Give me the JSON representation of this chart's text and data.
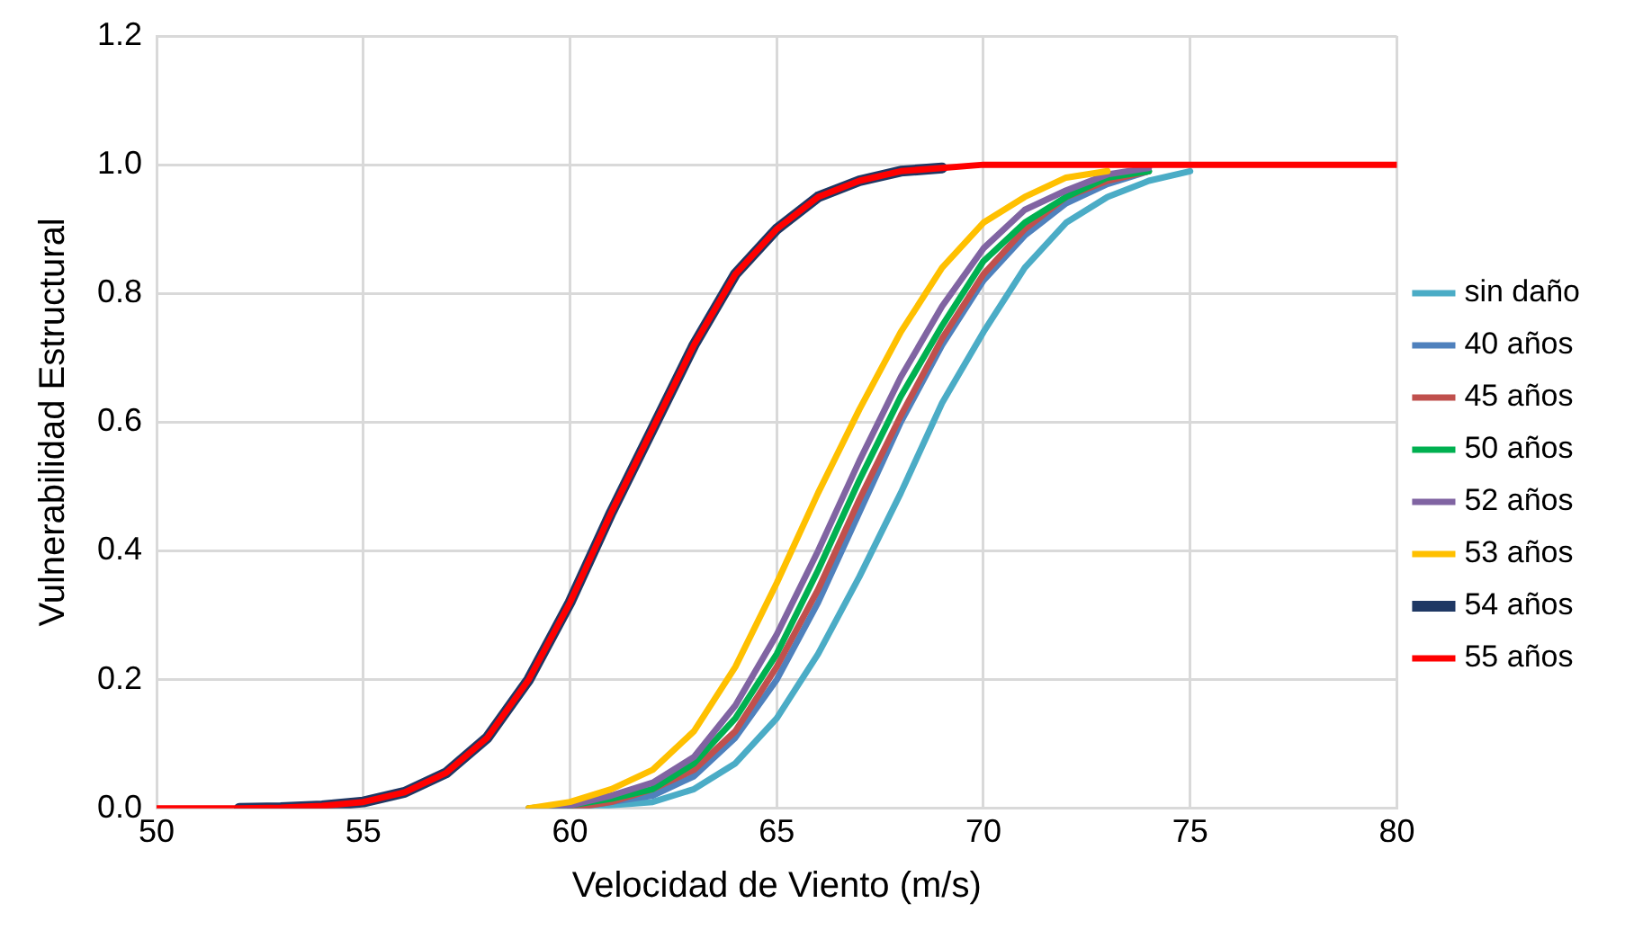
{
  "chart_data": {
    "type": "line",
    "xlabel": "Velocidad de Viento (m/s)",
    "ylabel": "Vulnerabilidad Estructural",
    "x": [
      50,
      51,
      52,
      53,
      54,
      55,
      56,
      57,
      58,
      59,
      60,
      61,
      62,
      63,
      64,
      65,
      66,
      67,
      68,
      69,
      70,
      71,
      72,
      73,
      74,
      75,
      76,
      77,
      78,
      79,
      80
    ],
    "series": [
      {
        "name": "sin daño",
        "color": "#4bacc6",
        "x": [
          60,
          61,
          62,
          63,
          64,
          65,
          66,
          67,
          68,
          69,
          70,
          71,
          72,
          73,
          74,
          75
        ],
        "values": [
          0,
          0.005,
          0.01,
          0.03,
          0.07,
          0.14,
          0.24,
          0.36,
          0.49,
          0.63,
          0.74,
          0.84,
          0.91,
          0.95,
          0.975,
          0.99
        ]
      },
      {
        "name": "40 años",
        "color": "#4f81bd",
        "x": [
          60,
          61,
          62,
          63,
          64,
          65,
          66,
          67,
          68,
          69,
          70,
          71,
          72,
          73,
          74
        ],
        "values": [
          0,
          0.01,
          0.02,
          0.05,
          0.11,
          0.2,
          0.32,
          0.46,
          0.6,
          0.72,
          0.82,
          0.89,
          0.94,
          0.97,
          0.99
        ]
      },
      {
        "name": "45 años",
        "color": "#c0504d",
        "x": [
          60,
          61,
          62,
          63,
          64,
          65,
          66,
          67,
          68,
          69,
          70,
          71,
          72,
          73,
          74
        ],
        "values": [
          0,
          0.01,
          0.03,
          0.06,
          0.12,
          0.22,
          0.34,
          0.48,
          0.61,
          0.73,
          0.83,
          0.9,
          0.95,
          0.975,
          0.99
        ]
      },
      {
        "name": "50 años",
        "color": "#00b050",
        "x": [
          59,
          60,
          61,
          62,
          63,
          64,
          65,
          66,
          67,
          68,
          69,
          70,
          71,
          72,
          73,
          74
        ],
        "values": [
          0,
          0.005,
          0.015,
          0.03,
          0.07,
          0.14,
          0.24,
          0.37,
          0.51,
          0.64,
          0.75,
          0.85,
          0.91,
          0.95,
          0.98,
          0.99
        ]
      },
      {
        "name": "52 años",
        "color": "#8064a2",
        "x": [
          59,
          60,
          61,
          62,
          63,
          64,
          65,
          66,
          67,
          68,
          69,
          70,
          71,
          72,
          73,
          74
        ],
        "values": [
          0,
          0.005,
          0.02,
          0.04,
          0.08,
          0.16,
          0.27,
          0.4,
          0.54,
          0.67,
          0.78,
          0.87,
          0.93,
          0.96,
          0.985,
          0.995
        ]
      },
      {
        "name": "53 años",
        "color": "#ffc000",
        "x": [
          59,
          60,
          61,
          62,
          63,
          64,
          65,
          66,
          67,
          68,
          69,
          70,
          71,
          72,
          73
        ],
        "values": [
          0,
          0.01,
          0.03,
          0.06,
          0.12,
          0.22,
          0.35,
          0.49,
          0.62,
          0.74,
          0.84,
          0.91,
          0.95,
          0.98,
          0.99
        ]
      },
      {
        "name": "54 años",
        "color": "#1f3864",
        "x": [
          52,
          53,
          54,
          55,
          56,
          57,
          58,
          59,
          60,
          61,
          62,
          63,
          64,
          65,
          66,
          67,
          68,
          69
        ],
        "values": [
          0,
          0.001,
          0.004,
          0.01,
          0.025,
          0.055,
          0.11,
          0.2,
          0.32,
          0.46,
          0.59,
          0.72,
          0.83,
          0.9,
          0.95,
          0.975,
          0.99,
          0.995
        ]
      },
      {
        "name": "55 años",
        "color": "#ff0000",
        "values": [
          0,
          0,
          0,
          0.001,
          0.004,
          0.01,
          0.025,
          0.055,
          0.11,
          0.2,
          0.32,
          0.46,
          0.59,
          0.72,
          0.83,
          0.9,
          0.95,
          0.975,
          0.99,
          0.995,
          1,
          1,
          1,
          1,
          1,
          1,
          1,
          1,
          1,
          1,
          1
        ]
      }
    ],
    "xlim": [
      50,
      80
    ],
    "xticks": [
      50,
      55,
      60,
      65,
      70,
      75,
      80
    ],
    "ylim": [
      0,
      1.2
    ],
    "yticks": [
      {
        "value": 0,
        "label": "0.0"
      },
      {
        "value": 0.2,
        "label": "0.2"
      },
      {
        "value": 0.4,
        "label": "0.4"
      },
      {
        "value": 0.6,
        "label": "0.6"
      },
      {
        "value": 0.8,
        "label": "0.8"
      },
      {
        "value": 1,
        "label": "1.0"
      },
      {
        "value": 1.2,
        "label": "1.2"
      }
    ],
    "grid": true,
    "legend": "right",
    "marker": "none",
    "line_style": "solid"
  }
}
